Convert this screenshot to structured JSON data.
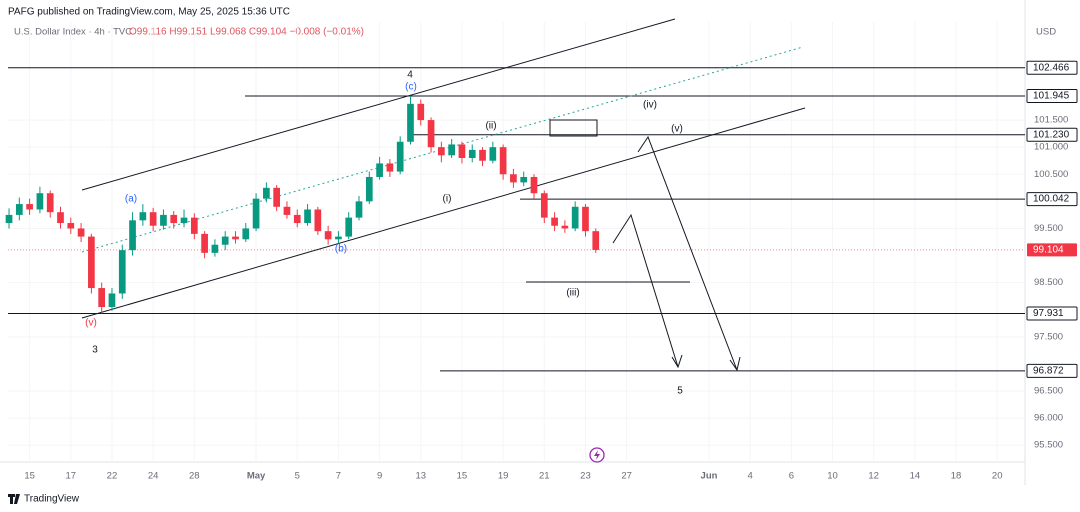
{
  "chart_data": {
    "type": "candlestick",
    "publisher": "PAFG published on TradingView.com, May 25, 2025 15:36 UTC",
    "title": "U.S. Dollar Index · 4h · TVC",
    "header_values": "O99.116 H99.151 L99.068 C99.104 −0.008 (−0.01%)",
    "currency": "USD",
    "footer": "TradingView",
    "up_color": "#089981",
    "down_color": "#f23645",
    "x": [
      -1,
      -0.5,
      0,
      0.5,
      1,
      1.5,
      2,
      2.5,
      3,
      3.5,
      4,
      4.5,
      5,
      5.5,
      6,
      6.5,
      7,
      7.5,
      8,
      8.5,
      9,
      9.5,
      10,
      10.5,
      11,
      11.5,
      12,
      12.5,
      13,
      13.5,
      14,
      14.5,
      15,
      15.5,
      16,
      16.5,
      17,
      17.5,
      18,
      18.5,
      19,
      19.5,
      20,
      20.5,
      21,
      21.5,
      22,
      22.5,
      23,
      23.5,
      24,
      24.5,
      25,
      25.5,
      26,
      26.5,
      27,
      27.5
    ],
    "open": [
      99.6,
      99.75,
      99.95,
      99.85,
      100.15,
      99.8,
      99.6,
      99.5,
      99.35,
      98.4,
      98.05,
      98.3,
      99.1,
      99.65,
      99.8,
      99.55,
      99.75,
      99.6,
      99.7,
      99.4,
      99.05,
      99.2,
      99.35,
      99.3,
      99.5,
      100.05,
      100.25,
      99.9,
      99.75,
      99.6,
      99.85,
      99.45,
      99.3,
      99.35,
      99.7,
      100.0,
      100.45,
      100.7,
      100.55,
      101.1,
      101.8,
      101.5,
      101.0,
      100.85,
      101.05,
      100.8,
      100.95,
      100.75,
      101.0,
      100.5,
      100.35,
      100.45,
      100.15,
      99.7,
      99.55,
      99.5,
      99.9,
      99.45
    ],
    "high": [
      99.87,
      100.07,
      100.05,
      100.27,
      100.2,
      99.9,
      99.7,
      99.6,
      99.4,
      98.5,
      98.4,
      99.2,
      99.8,
      99.95,
      99.88,
      99.85,
      99.82,
      99.85,
      99.78,
      99.45,
      99.3,
      99.45,
      99.45,
      99.6,
      100.15,
      100.35,
      100.3,
      100.0,
      99.85,
      99.95,
      99.9,
      99.55,
      99.45,
      99.8,
      100.1,
      100.55,
      100.82,
      100.78,
      101.2,
      101.95,
      101.88,
      101.55,
      101.1,
      101.15,
      101.1,
      101.05,
      101.0,
      101.1,
      101.05,
      100.6,
      100.55,
      100.5,
      100.2,
      99.8,
      99.65,
      100.0,
      99.95,
      99.5
    ],
    "low": [
      99.5,
      99.65,
      99.75,
      99.78,
      99.7,
      99.5,
      99.4,
      99.25,
      98.3,
      97.93,
      97.98,
      98.2,
      99.0,
      99.55,
      99.45,
      99.48,
      99.5,
      99.52,
      99.3,
      98.95,
      98.98,
      99.1,
      99.22,
      99.25,
      99.45,
      99.98,
      99.82,
      99.68,
      99.52,
      99.55,
      99.38,
      99.2,
      99.22,
      99.3,
      99.65,
      99.95,
      100.4,
      100.45,
      100.5,
      101.05,
      101.4,
      100.9,
      100.72,
      100.8,
      100.7,
      100.72,
      100.65,
      100.7,
      100.4,
      100.25,
      100.28,
      100.05,
      99.6,
      99.45,
      99.42,
      99.45,
      99.35,
      99.05
    ],
    "close": [
      99.75,
      99.95,
      99.85,
      100.15,
      99.8,
      99.6,
      99.5,
      99.35,
      98.4,
      98.05,
      98.3,
      99.1,
      99.65,
      99.8,
      99.55,
      99.75,
      99.6,
      99.7,
      99.4,
      99.05,
      99.2,
      99.35,
      99.3,
      99.5,
      100.05,
      100.25,
      99.9,
      99.75,
      99.6,
      99.85,
      99.45,
      99.3,
      99.35,
      99.7,
      100.0,
      100.45,
      100.7,
      100.55,
      101.1,
      101.8,
      101.5,
      101.0,
      100.85,
      101.05,
      100.8,
      100.95,
      100.75,
      101.0,
      100.5,
      100.35,
      100.45,
      100.15,
      99.7,
      99.55,
      99.5,
      99.9,
      99.45,
      99.104
    ],
    "last_price": 99.104,
    "last_price_color": "#f23645",
    "xlim": [
      -1.05,
      48.35
    ],
    "ylim": [
      95.19,
      103.31
    ],
    "xticks": [
      {
        "value": 0,
        "label": "15"
      },
      {
        "value": 2,
        "label": "17"
      },
      {
        "value": 4,
        "label": "22"
      },
      {
        "value": 6,
        "label": "24"
      },
      {
        "value": 8,
        "label": "28"
      },
      {
        "value": 11,
        "label": "May"
      },
      {
        "value": 13,
        "label": "5"
      },
      {
        "value": 15,
        "label": "7"
      },
      {
        "value": 17,
        "label": "9"
      },
      {
        "value": 19,
        "label": "13"
      },
      {
        "value": 21,
        "label": "15"
      },
      {
        "value": 23,
        "label": "19"
      },
      {
        "value": 25,
        "label": "21"
      },
      {
        "value": 27,
        "label": "23"
      },
      {
        "value": 29,
        "label": "27"
      },
      {
        "value": 33,
        "label": "Jun"
      },
      {
        "value": 35,
        "label": "4"
      },
      {
        "value": 37,
        "label": "6"
      },
      {
        "value": 39,
        "label": "10"
      },
      {
        "value": 41,
        "label": "12"
      },
      {
        "value": 43,
        "label": "14"
      },
      {
        "value": 45,
        "label": "18"
      },
      {
        "value": 47,
        "label": "20"
      }
    ],
    "yticks": [
      {
        "value": 95.5,
        "label": "95.500"
      },
      {
        "value": 96,
        "label": "96.000"
      },
      {
        "value": 96.5,
        "label": "96.500"
      },
      {
        "value": 97.5,
        "label": "97.500"
      },
      {
        "value": 98.5,
        "label": "98.500"
      },
      {
        "value": 99.5,
        "label": "99.500"
      },
      {
        "value": 100.5,
        "label": "100.500"
      },
      {
        "value": 101,
        "label": "101.000"
      },
      {
        "value": 101.5,
        "label": "101.500"
      }
    ],
    "levels": [
      102.466,
      101.945,
      {
        "value": 101.23,
        "label": "101.230"
      },
      100.042,
      97.931,
      96.872
    ],
    "annotations": [
      {
        "text": "4",
        "color": "#131722"
      },
      {
        "text": "(c)",
        "color": "#2962ff"
      },
      {
        "text": "(a)",
        "color": "#2962ff"
      },
      {
        "text": "(b)",
        "color": "#2962ff"
      },
      {
        "text": "(v)",
        "color": "#f23645"
      },
      {
        "text": "3",
        "color": "#131722"
      },
      {
        "text": "(ii)",
        "color": "#131722"
      },
      {
        "text": "(i)",
        "color": "#131722"
      },
      {
        "text": "(iii)",
        "color": "#131722"
      },
      {
        "text": "(iv)",
        "color": "#131722"
      },
      {
        "text": "(v)",
        "color": "#131722"
      },
      {
        "text": "5",
        "color": "#131722"
      }
    ]
  }
}
